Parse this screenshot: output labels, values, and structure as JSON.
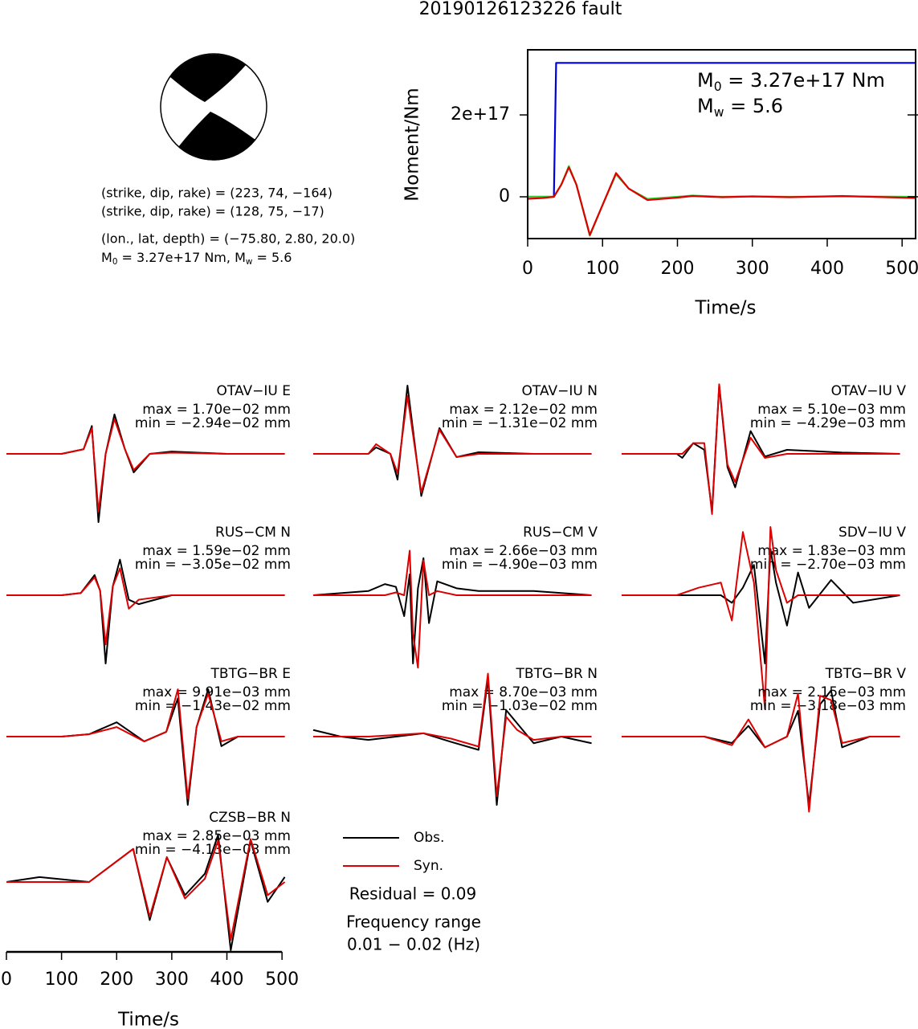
{
  "title": "20190126123226 fault",
  "mechanism": {
    "lines": [
      "(strike, dip, rake) = (223, 74, −164)",
      "(strike, dip, rake) = (128, 75, −17)",
      "(lon., lat, depth) = (−75.80, 2.80, 20.0)"
    ],
    "moment_line": [
      "M",
      "0",
      " = 3.27e+17 Nm, M",
      "w",
      " = 5.6"
    ]
  },
  "waveform_legend": [
    {
      "name": "Obs.",
      "color": "#000000"
    },
    {
      "name": "Syn.",
      "color": "#dd0000"
    }
  ],
  "waveform_axis": {
    "xlim": [
      0,
      510
    ],
    "xticks": [
      0,
      100,
      200,
      300,
      400,
      500
    ],
    "xlabel": "Time/s"
  },
  "notes": {
    "residual": "Residual = 0.09",
    "freq_title": "Frequency range",
    "freq_range": "0.01 − 0.02 (Hz)"
  },
  "chart_data": [
    {
      "type": "line",
      "xlabel": "Time/s",
      "ylabel": "Moment/Nm",
      "xlim": [
        0,
        518
      ],
      "xticks": [
        0,
        100,
        200,
        300,
        400,
        500
      ],
      "ylim": [
        -1.02e+17,
        3.59e+17
      ],
      "yticks": [
        0,
        {
          "value": 2e+17,
          "label": "2e+17"
        }
      ],
      "annotations": [
        [
          "M",
          "0",
          " = 3.27e+17 Nm"
        ],
        [
          "M",
          "w",
          " = 5.6"
        ]
      ],
      "series": [
        {
          "color": "#0000dd",
          "x": [
            0,
            35,
            38,
            518
          ],
          "values": [
            0,
            0,
            3.27e+17,
            3.27e+17
          ]
        },
        {
          "color": "#33cc33",
          "x": [
            0,
            20,
            35,
            45,
            55,
            65,
            83,
            100,
            118,
            135,
            160,
            200,
            220,
            260,
            300,
            350,
            420,
            518
          ],
          "values": [
            0,
            0,
            0,
            3e+16,
            7.5e+16,
            3e+16,
            -9.5e+16,
            -2e+16,
            5.5e+16,
            2e+16,
            -5000000000000000.0,
            0,
            3000000000000000.0,
            0,
            1000000000000000.0,
            0,
            1000000000000000.0,
            0
          ]
        },
        {
          "color": "#dd0000",
          "x": [
            0,
            20,
            35,
            45,
            55,
            65,
            83,
            100,
            118,
            135,
            160,
            200,
            220,
            260,
            300,
            350,
            420,
            518
          ],
          "values": [
            -5000000000000000.0,
            -3000000000000000.0,
            0,
            3e+16,
            7.2e+16,
            3e+16,
            -9.3e+16,
            -2e+16,
            5.8e+16,
            2e+16,
            -8000000000000000.0,
            -2000000000000000.0,
            2000000000000000.0,
            -1000000000000000.0,
            1000000000000000.0,
            -1000000000000000.0,
            2000000000000000.0,
            -3000000000000000.0
          ]
        }
      ]
    },
    {
      "type": "waveform",
      "station": "OTAV−IU E",
      "max_label": "max = 1.70e−02 mm",
      "min_label": "min = −2.94e−02 mm",
      "x": [
        0,
        100,
        140,
        155,
        167,
        180,
        196,
        215,
        231,
        260,
        300,
        400,
        505
      ],
      "obs": [
        0,
        0,
        0.002,
        0.012,
        -0.0294,
        0,
        0.017,
        0.002,
        -0.008,
        0,
        0.001,
        0,
        0
      ],
      "syn": [
        0,
        0,
        0.002,
        0.011,
        -0.025,
        0,
        0.015,
        0.002,
        -0.007,
        0,
        0.0005,
        0,
        0
      ]
    },
    {
      "type": "waveform",
      "station": "OTAV−IU N",
      "max_label": "max = 2.12e−02 mm",
      "min_label": "min = −1.31e−02 mm",
      "x": [
        0,
        100,
        114,
        140,
        153,
        171,
        196,
        229,
        260,
        300,
        400,
        505
      ],
      "obs": [
        0,
        0,
        0.002,
        0,
        -0.008,
        0.0212,
        -0.0131,
        0.008,
        -0.001,
        0.0005,
        0,
        0
      ],
      "syn": [
        0,
        0,
        0.003,
        0,
        -0.006,
        0.018,
        -0.012,
        0.0075,
        -0.001,
        0,
        0,
        0
      ]
    },
    {
      "type": "waveform",
      "station": "OTAV−IU V",
      "max_label": "max = 5.10e−03 mm",
      "min_label": "min = −4.29e−03 mm",
      "x": [
        0,
        100,
        110,
        130,
        150,
        164,
        177,
        192,
        206,
        234,
        260,
        300,
        400,
        505
      ],
      "obs": [
        0,
        0,
        -0.0003,
        0.0008,
        0.0003,
        -0.00429,
        0.0051,
        -0.001,
        -0.0025,
        0.0017,
        -0.0002,
        0.0003,
        0.0001,
        0
      ],
      "syn": [
        0,
        0,
        0,
        0.0008,
        0.0008,
        -0.0045,
        0.0052,
        -0.0008,
        -0.0021,
        0.0012,
        -0.0003,
        0,
        0,
        0
      ]
    },
    {
      "type": "waveform",
      "station": "RUS−CM N",
      "max_label": "max = 1.59e−02 mm",
      "min_label": "min = −3.05e−02 mm",
      "x": [
        0,
        100,
        135,
        160,
        170,
        180,
        193,
        206,
        222,
        240,
        300,
        400,
        505
      ],
      "obs": [
        0,
        0,
        0.001,
        0.009,
        0.002,
        -0.0305,
        0.004,
        0.0159,
        -0.002,
        -0.004,
        0,
        0,
        0
      ],
      "syn": [
        0,
        0,
        0.001,
        0.008,
        0.002,
        -0.022,
        0.004,
        0.012,
        -0.006,
        -0.002,
        0,
        0,
        0
      ]
    },
    {
      "type": "waveform",
      "station": "RUS−CM V",
      "max_label": "max = 2.66e−03 mm",
      "min_label": "min = −4.90e−03 mm",
      "x": [
        0,
        100,
        130,
        150,
        165,
        175,
        181,
        190,
        200,
        210,
        225,
        260,
        300,
        400,
        505
      ],
      "obs": [
        0,
        0.0003,
        0.0008,
        0.0006,
        -0.0015,
        0.0015,
        -0.0049,
        0.0005,
        0.00266,
        -0.002,
        0.001,
        0.0005,
        0.0003,
        0.0003,
        0
      ],
      "syn": [
        0,
        0,
        0,
        0.0002,
        0,
        0.0032,
        -0.0028,
        -0.0052,
        0.0025,
        0,
        0.0003,
        0,
        0,
        0,
        0
      ]
    },
    {
      "type": "waveform",
      "station": "SDV−IU V",
      "max_label": "max = 1.83e−03 mm",
      "min_label": "min = −2.70e−03 mm",
      "x": [
        0,
        100,
        140,
        180,
        200,
        220,
        240,
        260,
        270,
        280,
        300,
        320,
        340,
        380,
        420,
        505
      ],
      "obs": [
        0,
        0,
        0,
        0,
        -0.0003,
        0.0003,
        0.0012,
        -0.0027,
        0.00183,
        0.0005,
        -0.0012,
        0.0009,
        -0.0005,
        0.0006,
        -0.0003,
        0
      ],
      "syn": [
        0,
        0,
        0.0003,
        0.0005,
        -0.001,
        0.0025,
        0.0005,
        -0.0045,
        0.0027,
        0.001,
        -0.0003,
        0,
        0,
        0,
        0,
        0
      ]
    },
    {
      "type": "waveform",
      "station": "TBTG−BR E",
      "max_label": "max = 9.91e−03 mm",
      "min_label": "min = −1.43e−02 mm",
      "x": [
        0,
        100,
        150,
        200,
        250,
        290,
        311,
        329,
        345,
        366,
        390,
        420,
        505
      ],
      "obs": [
        0,
        0,
        0.0005,
        0.003,
        -0.001,
        0.001,
        0.008,
        -0.0143,
        0.002,
        0.00991,
        -0.002,
        0,
        0
      ],
      "syn": [
        0,
        0,
        0.0005,
        0.002,
        -0.001,
        0.001,
        0.0099,
        -0.013,
        0.002,
        0.009,
        -0.001,
        0,
        0
      ]
    },
    {
      "type": "waveform",
      "station": "TBTG−BR N",
      "max_label": "max = 8.70e−03 mm",
      "min_label": "min = −1.03e−02 mm",
      "x": [
        0,
        50,
        100,
        200,
        250,
        300,
        317,
        333,
        350,
        370,
        400,
        450,
        505
      ],
      "obs": [
        0.001,
        0,
        -0.0005,
        0.0005,
        -0.0008,
        -0.002,
        0.0087,
        -0.0103,
        0.004,
        0.002,
        -0.001,
        0,
        -0.001
      ],
      "syn": [
        0,
        0,
        0,
        0.0005,
        -0.0003,
        -0.0015,
        0.0095,
        -0.009,
        0.003,
        0.001,
        -0.0005,
        0,
        0
      ]
    },
    {
      "type": "waveform",
      "station": "TBTG−BR V",
      "max_label": "max = 2.15e−03 mm",
      "min_label": "min = −3.18e−03 mm",
      "x": [
        0,
        150,
        200,
        230,
        260,
        300,
        320,
        340,
        360,
        380,
        400,
        450,
        505
      ],
      "obs": [
        0,
        0,
        -0.0003,
        0.0005,
        -0.0005,
        0,
        0.0012,
        -0.00318,
        0.0015,
        0.00215,
        -0.0005,
        0,
        0
      ],
      "syn": [
        0,
        0,
        -0.0004,
        0.0008,
        -0.0005,
        0,
        0.002,
        -0.0035,
        0.0019,
        0.0017,
        -0.0003,
        0,
        0
      ]
    },
    {
      "type": "waveform",
      "station": "CZSB−BR N",
      "max_label": "max = 2.85e−03 mm",
      "min_label": "min = −4.13e−03 mm",
      "x": [
        0,
        60,
        150,
        230,
        260,
        291,
        324,
        360,
        384,
        407,
        443,
        474,
        505
      ],
      "obs": [
        0,
        0.0003,
        0,
        0.002,
        -0.0023,
        0.0015,
        -0.0008,
        0.0005,
        0.00285,
        -0.00413,
        0.0025,
        -0.0012,
        0.0003
      ],
      "syn": [
        0,
        0,
        0,
        0.002,
        -0.0021,
        0.0015,
        -0.001,
        0.0002,
        0.0025,
        -0.0035,
        0.0026,
        -0.0008,
        0
      ]
    }
  ]
}
